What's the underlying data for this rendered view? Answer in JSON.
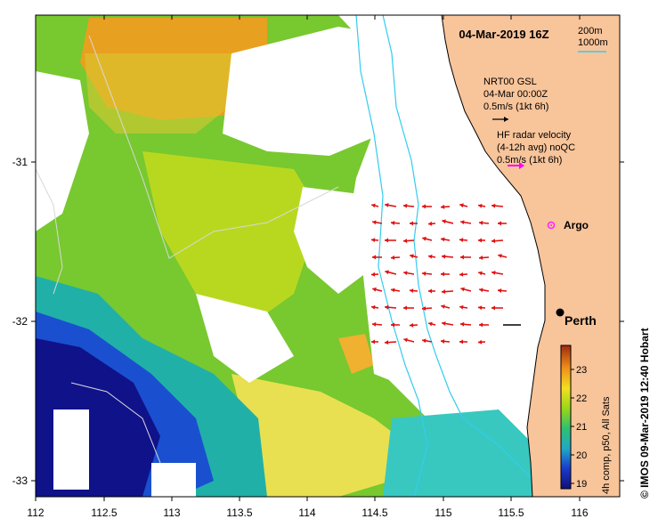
{
  "title": "04-Mar-2019 16Z",
  "contour_legend": {
    "depth_1": "200m",
    "depth_2": "1000m"
  },
  "model_legend": {
    "line1": "NRT00 GSL",
    "line2": "04-Mar 00:00Z",
    "line3": "0.5m/s (1kt 6h)"
  },
  "radar_legend": {
    "line1": "HF radar velocity",
    "line2": "(4-12h avg) noQC",
    "line3": "0.5m/s (1kt 6h)"
  },
  "places": {
    "argo": "Argo",
    "perth": "Perth"
  },
  "x_ticks": [
    "112",
    "112.5",
    "113",
    "113.5",
    "114",
    "114.5",
    "115",
    "115.5",
    "116"
  ],
  "y_ticks": [
    "-31",
    "-32",
    "-33"
  ],
  "colorbar": {
    "ticks": [
      "23",
      "22",
      "21",
      "20",
      "19"
    ],
    "label": "4h comp, p50, All Sats"
  },
  "credit": "© IMOS 09-Mar-2019 12:40 Hobart",
  "colors": {
    "land": "#f8c49a",
    "contour": "#33ccee",
    "radar_arrow": "#e01010",
    "radar_legend_arrow": "#ff00ff",
    "argo": "#ff22ff"
  },
  "chart_data": {
    "type": "heatmap",
    "xlim": [
      112,
      116.3
    ],
    "ylim": [
      -33.1,
      -30.1
    ],
    "colorbar_range": [
      18.8,
      23.8
    ],
    "markers": [
      {
        "name": "Argo",
        "lon": 115.75,
        "lat": -31.4
      },
      {
        "name": "Perth",
        "lon": 115.87,
        "lat": -31.95
      }
    ]
  }
}
